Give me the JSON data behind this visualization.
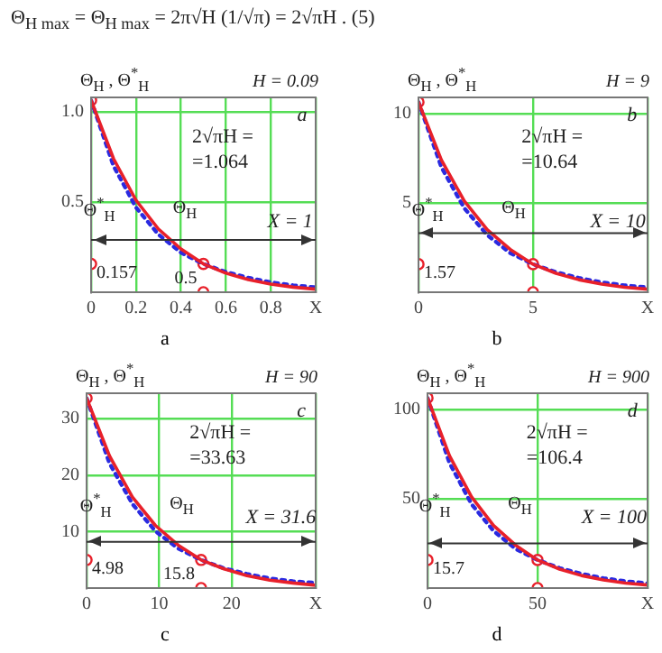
{
  "chart_data": [
    {
      "type": "line",
      "title": "H = 0.09",
      "subtitle": "Θ$_{H max}$ = Θ$_{H max}$ = 2π√H (1/√π) = 2√πH .   (5)",
      "ylabel": "Θ$_{H}$ , Θ$^{*}$$_{H}$",
      "x": [
        0,
        0.1,
        0.2,
        0.3,
        0.4,
        0.5,
        0.6,
        0.7,
        0.8,
        0.9,
        1.0
      ],
      "xlim": [
        0,
        1
      ],
      "ylim": [
        0,
        1.08
      ],
      "xticks": [
        0,
        0.2,
        0.4,
        0.6,
        0.8,
        {
          "value": 1,
          "label": "X"
        }
      ],
      "yticks": [
        0.5,
        {
          "value": 1,
          "label": "1.0"
        }
      ],
      "grid": true,
      "legend": false,
      "marker": "none",
      "series": [
        {
          "name": "Θ$_{H}$",
          "color": "#e8202a",
          "line_style": "solid",
          "values": [
            1.064,
            0.74,
            0.51,
            0.35,
            0.24,
            0.157,
            0.106,
            0.07,
            0.045,
            0.028,
            0.017
          ]
        },
        {
          "name": "Θ$^{*}$$_{H}$",
          "color": "#2a2ae0",
          "line_style": "dotted",
          "values": [
            1.064,
            0.7,
            0.47,
            0.32,
            0.22,
            0.157,
            0.112,
            0.08,
            0.055,
            0.038,
            0.027
          ]
        },
        {
          "type": "scatter",
          "color": "#e8202a",
          "marker": "circle",
          "x": [
            0,
            0,
            0.5,
            0.5
          ],
          "values": [
            1.064,
            0.157,
            0,
            0.157
          ]
        }
      ],
      "ref_lines": [
        {
          "axis": "y",
          "value": 0.29,
          "color": "#333333"
        }
      ],
      "annotations": [
        "a",
        "a",
        "2√πH =",
        "=1.064",
        "X = 1",
        {
          "text": "0.157",
          "x": 0,
          "y": 0.157
        },
        {
          "text": "0.5",
          "x": 0.5,
          "y": 0
        }
      ]
    },
    {
      "type": "line",
      "title": "H = 9",
      "ylabel": "Θ$_{H}$ , Θ$^{*}$$_{H}$",
      "x": [
        0,
        1,
        2,
        3,
        4,
        5,
        6,
        7,
        8,
        9,
        10
      ],
      "xlim": [
        0,
        10
      ],
      "ylim": [
        0,
        10.9
      ],
      "xticks": [
        0,
        5,
        {
          "value": 10,
          "label": "X"
        }
      ],
      "yticks": [
        5,
        10
      ],
      "grid": true,
      "legend": false,
      "marker": "none",
      "series": [
        {
          "name": "Θ$_{H}$",
          "color": "#e8202a",
          "line_style": "solid",
          "values": [
            10.64,
            7.4,
            5.1,
            3.5,
            2.4,
            1.57,
            1.06,
            0.7,
            0.45,
            0.28,
            0.17
          ]
        },
        {
          "name": "Θ$^{*}$$_{H}$",
          "color": "#2a2ae0",
          "line_style": "dotted",
          "values": [
            10.64,
            7.0,
            4.7,
            3.2,
            2.2,
            1.57,
            1.12,
            0.8,
            0.55,
            0.38,
            0.27
          ]
        },
        {
          "type": "scatter",
          "color": "#e8202a",
          "marker": "circle",
          "x": [
            0,
            0,
            5,
            5
          ],
          "values": [
            10.64,
            1.57,
            0,
            1.57
          ]
        }
      ],
      "ref_lines": [
        {
          "axis": "y",
          "value": 3.3,
          "color": "#333333"
        }
      ],
      "annotations": [
        "b",
        "b",
        "2√πH =",
        "=10.64",
        "X = 10",
        {
          "text": "1.57",
          "x": 0,
          "y": 1.57
        }
      ]
    },
    {
      "type": "line",
      "title": "H = 90",
      "ylabel": "Θ$_{H}$ , Θ$^{*}$$_{H}$",
      "x": [
        0,
        3.16,
        6.32,
        9.48,
        12.64,
        15.8,
        18.96,
        22.12,
        25.28,
        28.44,
        31.6
      ],
      "xlim": [
        0,
        31.6
      ],
      "ylim": [
        0,
        34.5
      ],
      "xticks": [
        0,
        10,
        20,
        {
          "value": 31.6,
          "label": "X"
        }
      ],
      "yticks": [
        10,
        20,
        30
      ],
      "grid": true,
      "legend": false,
      "marker": "none",
      "series": [
        {
          "name": "Θ$_{H}$",
          "color": "#e8202a",
          "line_style": "solid",
          "values": [
            33.63,
            23.4,
            16.1,
            11.1,
            7.6,
            4.98,
            3.4,
            2.2,
            1.4,
            0.9,
            0.5
          ]
        },
        {
          "name": "Θ$^{*}$$_{H}$",
          "color": "#2a2ae0",
          "line_style": "dotted",
          "values": [
            33.63,
            22.1,
            14.9,
            10.1,
            7.0,
            4.98,
            3.5,
            2.5,
            1.7,
            1.2,
            0.9
          ]
        },
        {
          "type": "scatter",
          "color": "#e8202a",
          "marker": "circle",
          "x": [
            0,
            0,
            15.8,
            15.8
          ],
          "values": [
            33.63,
            4.98,
            0,
            4.98
          ]
        }
      ],
      "ref_lines": [
        {
          "axis": "y",
          "value": 8.2,
          "color": "#333333"
        }
      ],
      "annotations": [
        "c",
        "c",
        "2√πH =",
        "=33.63",
        "X = 31.6",
        {
          "text": "4.98",
          "x": 0,
          "y": 4.98
        },
        {
          "text": "15.8",
          "x": 15.8,
          "y": 0
        }
      ]
    },
    {
      "type": "line",
      "title": "H = 900",
      "ylabel": "Θ$_{H}$ , Θ$^{*}$$_{H}$",
      "x": [
        0,
        10,
        20,
        30,
        40,
        50,
        60,
        70,
        80,
        90,
        100
      ],
      "xlim": [
        0,
        100
      ],
      "ylim": [
        0,
        109
      ],
      "xticks": [
        0,
        50,
        {
          "value": 100,
          "label": "X"
        }
      ],
      "yticks": [
        50,
        100
      ],
      "grid": true,
      "legend": false,
      "marker": "none",
      "series": [
        {
          "name": "Θ$_{H}$",
          "color": "#e8202a",
          "line_style": "solid",
          "values": [
            106.4,
            74,
            51,
            35,
            24,
            15.7,
            10.6,
            7,
            4.5,
            2.8,
            1.7
          ]
        },
        {
          "name": "Θ$^{*}$$_{H}$",
          "color": "#2a2ae0",
          "line_style": "dotted",
          "values": [
            106.4,
            70,
            47,
            32,
            22,
            15.7,
            11.2,
            8,
            5.5,
            3.8,
            2.7
          ]
        },
        {
          "type": "scatter",
          "color": "#e8202a",
          "marker": "circle",
          "x": [
            0,
            0,
            50,
            50
          ],
          "values": [
            106.4,
            15.7,
            0,
            15.7
          ]
        }
      ],
      "ref_lines": [
        {
          "axis": "y",
          "value": 25,
          "color": "#333333"
        }
      ],
      "annotations": [
        "d",
        "d",
        "2√πH =",
        "=106.4",
        "X = 100",
        {
          "text": "15.7",
          "x": 0,
          "y": 15.7
        }
      ]
    }
  ]
}
